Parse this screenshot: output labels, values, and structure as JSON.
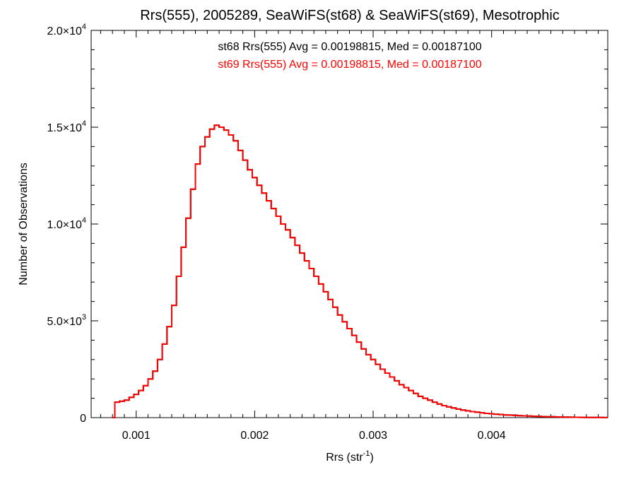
{
  "chart_data": {
    "type": "line",
    "title": "Rrs(555), 2005289, SeaWiFS(st68) & SeaWiFS(st69), Mesotrophic",
    "xlabel": "Rrs (str",
    "xlabel_sup": "-1",
    "xlabel_end": ")",
    "ylabel": "Number of Observations",
    "xlim": [
      0.00062,
      0.00498
    ],
    "ylim": [
      0,
      20000
    ],
    "x_ticks": [
      0.001,
      0.002,
      0.003,
      0.004
    ],
    "x_tick_labels": [
      "0.001",
      "0.002",
      "0.003",
      "0.004"
    ],
    "y_ticks": [
      0,
      5000,
      10000,
      15000,
      20000
    ],
    "y_tick_labels": [
      {
        "mant": "0",
        "exp": ""
      },
      {
        "mant": "5.0×10",
        "exp": "3"
      },
      {
        "mant": "1.0×10",
        "exp": "4"
      },
      {
        "mant": "1.5×10",
        "exp": "4"
      },
      {
        "mant": "2.0×10",
        "exp": "4"
      }
    ],
    "annotations": [
      {
        "text": "st68 Rrs(555) Avg = 0.00198815, Med = 0.00187100",
        "color": "#000000"
      },
      {
        "text": "st69 Rrs(555) Avg = 0.00198815, Med = 0.00187100",
        "color": "#ff0000"
      }
    ],
    "grid": false,
    "series": [
      {
        "name": "st68",
        "color": "#000000",
        "x": [
          0.0008,
          0.00082,
          0.00086,
          0.0009,
          0.00094,
          0.00098,
          0.00102,
          0.00106,
          0.0011,
          0.00114,
          0.00118,
          0.00122,
          0.00126,
          0.0013,
          0.00134,
          0.00138,
          0.00142,
          0.00146,
          0.0015,
          0.00154,
          0.00158,
          0.00162,
          0.00166,
          0.0017,
          0.00174,
          0.00178,
          0.00182,
          0.00186,
          0.0019,
          0.00194,
          0.00198,
          0.00202,
          0.00206,
          0.0021,
          0.00214,
          0.00218,
          0.00222,
          0.00226,
          0.0023,
          0.00234,
          0.00238,
          0.00242,
          0.00246,
          0.0025,
          0.00254,
          0.00258,
          0.00262,
          0.00266,
          0.0027,
          0.00274,
          0.00278,
          0.00282,
          0.00286,
          0.0029,
          0.00294,
          0.00298,
          0.00302,
          0.00306,
          0.0031,
          0.00314,
          0.00318,
          0.00322,
          0.00326,
          0.0033,
          0.00334,
          0.00338,
          0.00342,
          0.00346,
          0.0035,
          0.00354,
          0.00358,
          0.00362,
          0.00366,
          0.0037,
          0.00374,
          0.00378,
          0.00382,
          0.00386,
          0.0039,
          0.00394,
          0.00398,
          0.00402,
          0.00406,
          0.0041,
          0.00414,
          0.00418,
          0.00422,
          0.00426,
          0.0043,
          0.00434,
          0.00438,
          0.00442,
          0.00446,
          0.0045,
          0.00454,
          0.00458,
          0.00462,
          0.00466,
          0.0047,
          0.00474,
          0.00478,
          0.00482,
          0.00486,
          0.0049,
          0.00494,
          0.00498
        ],
        "y": [
          0,
          800,
          850,
          900,
          1050,
          1200,
          1400,
          1650,
          2000,
          2400,
          3000,
          3800,
          4700,
          5800,
          7300,
          8800,
          10300,
          11800,
          13100,
          14000,
          14500,
          14900,
          15100,
          15000,
          14850,
          14600,
          14300,
          13800,
          13300,
          12800,
          12400,
          12000,
          11600,
          11200,
          10800,
          10400,
          10000,
          9700,
          9300,
          8900,
          8500,
          8100,
          7700,
          7300,
          6900,
          6500,
          6100,
          5700,
          5300,
          4950,
          4600,
          4250,
          3900,
          3550,
          3250,
          3000,
          2750,
          2500,
          2300,
          2100,
          1900,
          1700,
          1550,
          1400,
          1250,
          1100,
          1000,
          900,
          800,
          700,
          620,
          560,
          500,
          440,
          390,
          350,
          310,
          280,
          250,
          220,
          200,
          180,
          160,
          140,
          130,
          115,
          100,
          90,
          80,
          70,
          62,
          55,
          48,
          42,
          36,
          30,
          26,
          22,
          18,
          15,
          12,
          10,
          8,
          6,
          4,
          3
        ]
      },
      {
        "name": "st69",
        "color": "#ff0000",
        "x": [
          0.0008,
          0.00082,
          0.00086,
          0.0009,
          0.00094,
          0.00098,
          0.00102,
          0.00106,
          0.0011,
          0.00114,
          0.00118,
          0.00122,
          0.00126,
          0.0013,
          0.00134,
          0.00138,
          0.00142,
          0.00146,
          0.0015,
          0.00154,
          0.00158,
          0.00162,
          0.00166,
          0.0017,
          0.00174,
          0.00178,
          0.00182,
          0.00186,
          0.0019,
          0.00194,
          0.00198,
          0.00202,
          0.00206,
          0.0021,
          0.00214,
          0.00218,
          0.00222,
          0.00226,
          0.0023,
          0.00234,
          0.00238,
          0.00242,
          0.00246,
          0.0025,
          0.00254,
          0.00258,
          0.00262,
          0.00266,
          0.0027,
          0.00274,
          0.00278,
          0.00282,
          0.00286,
          0.0029,
          0.00294,
          0.00298,
          0.00302,
          0.00306,
          0.0031,
          0.00314,
          0.00318,
          0.00322,
          0.00326,
          0.0033,
          0.00334,
          0.00338,
          0.00342,
          0.00346,
          0.0035,
          0.00354,
          0.00358,
          0.00362,
          0.00366,
          0.0037,
          0.00374,
          0.00378,
          0.00382,
          0.00386,
          0.0039,
          0.00394,
          0.00398,
          0.00402,
          0.00406,
          0.0041,
          0.00414,
          0.00418,
          0.00422,
          0.00426,
          0.0043,
          0.00434,
          0.00438,
          0.00442,
          0.00446,
          0.0045,
          0.00454,
          0.00458,
          0.00462,
          0.00466,
          0.0047,
          0.00474,
          0.00478,
          0.00482,
          0.00486,
          0.0049,
          0.00494,
          0.00498
        ],
        "y": [
          0,
          800,
          850,
          900,
          1050,
          1200,
          1400,
          1650,
          2000,
          2400,
          3000,
          3800,
          4700,
          5800,
          7300,
          8800,
          10300,
          11800,
          13100,
          14000,
          14500,
          14900,
          15100,
          15000,
          14850,
          14600,
          14300,
          13800,
          13300,
          12800,
          12400,
          12000,
          11600,
          11200,
          10800,
          10400,
          10000,
          9700,
          9300,
          8900,
          8500,
          8100,
          7700,
          7300,
          6900,
          6500,
          6100,
          5700,
          5300,
          4950,
          4600,
          4250,
          3900,
          3550,
          3250,
          3000,
          2750,
          2500,
          2300,
          2100,
          1900,
          1700,
          1550,
          1400,
          1250,
          1100,
          1000,
          900,
          800,
          700,
          620,
          560,
          500,
          440,
          390,
          350,
          310,
          280,
          250,
          220,
          200,
          180,
          160,
          140,
          130,
          115,
          100,
          90,
          80,
          70,
          62,
          55,
          48,
          42,
          36,
          30,
          26,
          22,
          18,
          15,
          12,
          10,
          8,
          6,
          4,
          3
        ]
      }
    ]
  }
}
